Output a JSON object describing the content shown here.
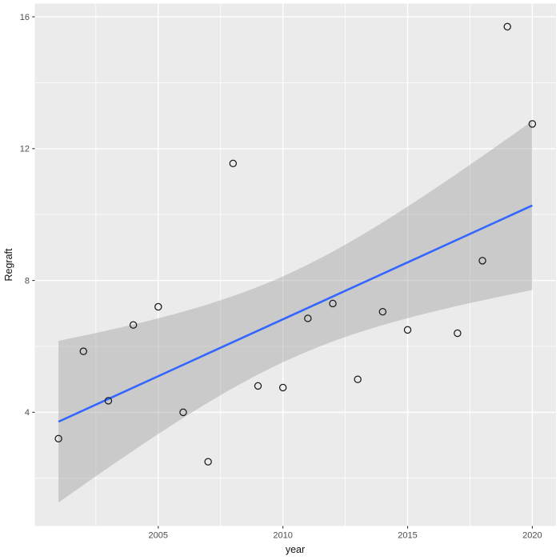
{
  "figure": {
    "kind": "ggplot2 scatter plot with linear smooth and confidence ribbon",
    "background": "#FFFFFF",
    "legend": "none",
    "title": ""
  },
  "chart_data": {
    "type": "scatter",
    "title": "",
    "xlabel": "year",
    "ylabel": "Regraft",
    "points": [
      {
        "x": 2001,
        "y": 3.2
      },
      {
        "x": 2002,
        "y": 5.85
      },
      {
        "x": 2003,
        "y": 4.35
      },
      {
        "x": 2004,
        "y": 6.65
      },
      {
        "x": 2005,
        "y": 7.2
      },
      {
        "x": 2006,
        "y": 4.0
      },
      {
        "x": 2007,
        "y": 2.5
      },
      {
        "x": 2008,
        "y": 11.55
      },
      {
        "x": 2009,
        "y": 4.8
      },
      {
        "x": 2010,
        "y": 4.75
      },
      {
        "x": 2011,
        "y": 6.85
      },
      {
        "x": 2012,
        "y": 7.3
      },
      {
        "x": 2013,
        "y": 5.0
      },
      {
        "x": 2014,
        "y": 7.05
      },
      {
        "x": 2015,
        "y": 6.5
      },
      {
        "x": 2017,
        "y": 6.4
      },
      {
        "x": 2018,
        "y": 8.6
      },
      {
        "x": 2019,
        "y": 15.7
      },
      {
        "x": 2020,
        "y": 12.75
      }
    ],
    "smooth": {
      "method": "lm",
      "ci_level": 0.95,
      "x_range": [
        2001,
        2020
      ],
      "observed_line_endpoints": [
        {
          "x": 2001,
          "y": 3.73
        },
        {
          "x": 2020,
          "y": 10.28
        }
      ]
    },
    "x_ticks": [
      2005,
      2010,
      2015,
      2020
    ],
    "x_tick_labels": [
      "2005",
      "2010",
      "2015",
      "2020"
    ],
    "y_ticks": [
      4,
      8,
      12,
      16
    ],
    "y_tick_labels": [
      "4",
      "8",
      "12",
      "16"
    ],
    "x_minor_gridlines": [
      2002.5,
      2007.5,
      2012.5,
      2017.5
    ],
    "y_minor_gridlines": [
      2,
      6,
      10,
      14
    ],
    "xlim": [
      2000.05,
      2020.95
    ],
    "ylim": [
      0.55,
      16.4
    ],
    "grid": "major and minor, white on gray panel",
    "legend_position": "none",
    "colors": {
      "panel_bg": "#EBEBEB",
      "grid": "#FFFFFF",
      "smooth_line": "#3366FF",
      "ribbon_fill": "#999999",
      "ribbon_opacity": 0.4,
      "point_stroke": "#1A1A1A",
      "tick_label": "#4D4D4D",
      "tick_mark": "#333333",
      "axis_title": "#111111"
    }
  }
}
